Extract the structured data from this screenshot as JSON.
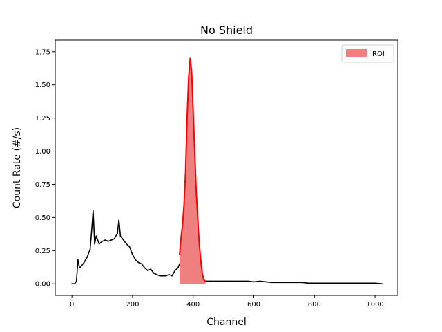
{
  "chart_data": {
    "type": "line",
    "title": "No Shield",
    "xlabel": "Channel",
    "ylabel": "Count Rate (#/s)",
    "xlim": [
      -55,
      1075
    ],
    "ylim": [
      -0.0875,
      1.8375
    ],
    "xticks": [
      0,
      200,
      400,
      600,
      800,
      1000
    ],
    "yticks": [
      0.0,
      0.25,
      0.5,
      0.75,
      1.0,
      1.25,
      1.5,
      1.75
    ],
    "xtick_labels": [
      "0",
      "200",
      "400",
      "600",
      "800",
      "1000"
    ],
    "ytick_labels": [
      "0.00",
      "0.25",
      "0.50",
      "0.75",
      "1.00",
      "1.25",
      "1.50",
      "1.75"
    ],
    "grid": false,
    "legend": {
      "placement": "top-right",
      "entries": [
        {
          "label": "ROI",
          "color": "#f08080"
        }
      ]
    },
    "series": [
      {
        "color": "#000000",
        "x": [
          0,
          10,
          15,
          20,
          25,
          30,
          40,
          50,
          60,
          65,
          70,
          75,
          80,
          90,
          100,
          110,
          120,
          130,
          140,
          150,
          155,
          160,
          170,
          180,
          190,
          200,
          210,
          220,
          230,
          240,
          250,
          260,
          270,
          280,
          290,
          300,
          310,
          320,
          330,
          340,
          350,
          355
        ],
        "y": [
          0.0,
          0.0,
          0.02,
          0.18,
          0.12,
          0.13,
          0.16,
          0.2,
          0.26,
          0.4,
          0.55,
          0.3,
          0.36,
          0.3,
          0.32,
          0.33,
          0.32,
          0.33,
          0.34,
          0.38,
          0.48,
          0.36,
          0.33,
          0.3,
          0.28,
          0.22,
          0.18,
          0.16,
          0.15,
          0.12,
          0.1,
          0.11,
          0.08,
          0.07,
          0.06,
          0.06,
          0.06,
          0.07,
          0.06,
          0.1,
          0.12,
          0.15
        ]
      },
      {
        "color": "#000000",
        "x": [
          440,
          460,
          480,
          500,
          520,
          540,
          560,
          580,
          600,
          620,
          640,
          660,
          680,
          700,
          720,
          740,
          760,
          780,
          800,
          820,
          840,
          860,
          880,
          900,
          920,
          940,
          960,
          980,
          1000,
          1023
        ],
        "y": [
          0.02,
          0.02,
          0.02,
          0.02,
          0.02,
          0.02,
          0.02,
          0.02,
          0.015,
          0.02,
          0.015,
          0.01,
          0.01,
          0.01,
          0.01,
          0.01,
          0.01,
          0.005,
          0.005,
          0.005,
          0.005,
          0.005,
          0.005,
          0.005,
          0.005,
          0.005,
          0.005,
          0.005,
          0.005,
          0.0
        ]
      },
      {
        "name": "ROI",
        "color": "#ff0000",
        "fill": "#f08080",
        "x": [
          355,
          360,
          365,
          370,
          375,
          380,
          385,
          390,
          395,
          400,
          405,
          410,
          415,
          420,
          425,
          430,
          435,
          440
        ],
        "y": [
          0.22,
          0.35,
          0.45,
          0.6,
          0.85,
          1.25,
          1.55,
          1.7,
          1.6,
          1.3,
          1.0,
          0.7,
          0.5,
          0.3,
          0.18,
          0.08,
          0.03,
          0.02
        ]
      }
    ]
  }
}
